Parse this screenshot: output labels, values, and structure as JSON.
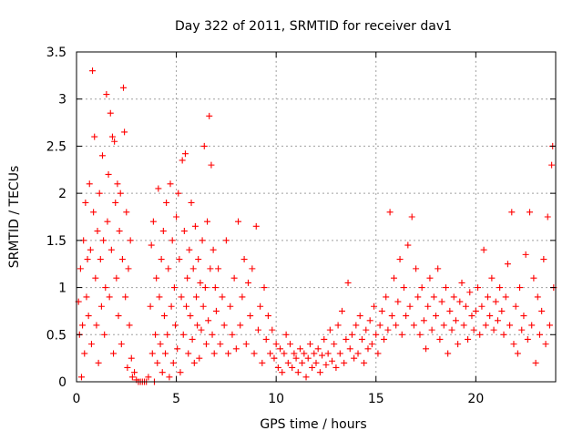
{
  "chart_data": {
    "type": "scatter",
    "title": "Day 322 of 2011, SRMTID for receiver dav1",
    "xlabel": "GPS time / hours",
    "ylabel": "SRMTID / TECUs",
    "xlim": [
      0,
      24
    ],
    "ylim": [
      0,
      3.5
    ],
    "x_ticks": [
      0,
      5,
      10,
      15,
      20
    ],
    "x_tick_labels": [
      "0",
      "5",
      "10",
      "15",
      "20"
    ],
    "y_ticks": [
      0,
      0.5,
      1,
      1.5,
      2,
      2.5,
      3,
      3.5
    ],
    "y_tick_labels": [
      "0",
      "0.5",
      "1",
      "1.5",
      "2",
      "2.5",
      "3",
      "3.5"
    ],
    "grid": true,
    "marker": "plus",
    "series": [
      {
        "name": "dav1",
        "color": "#ff0000",
        "points": [
          [
            0.1,
            0.85
          ],
          [
            0.15,
            0.5
          ],
          [
            0.2,
            1.2
          ],
          [
            0.25,
            0.05
          ],
          [
            0.3,
            0.6
          ],
          [
            0.35,
            1.5
          ],
          [
            0.4,
            0.3
          ],
          [
            0.45,
            1.9
          ],
          [
            0.5,
            0.9
          ],
          [
            0.55,
            1.3
          ],
          [
            0.6,
            0.7
          ],
          [
            0.65,
            2.1
          ],
          [
            0.7,
            1.4
          ],
          [
            0.75,
            0.4
          ],
          [
            0.8,
            3.3
          ],
          [
            0.85,
            1.8
          ],
          [
            0.9,
            2.6
          ],
          [
            0.95,
            1.1
          ],
          [
            1.0,
            0.6
          ],
          [
            1.05,
            1.6
          ],
          [
            1.1,
            0.2
          ],
          [
            1.15,
            2.0
          ],
          [
            1.2,
            1.3
          ],
          [
            1.25,
            0.8
          ],
          [
            1.3,
            2.4
          ],
          [
            1.35,
            1.5
          ],
          [
            1.4,
            0.5
          ],
          [
            1.45,
            1.0
          ],
          [
            1.5,
            3.05
          ],
          [
            1.55,
            1.7
          ],
          [
            1.6,
            2.2
          ],
          [
            1.65,
            0.9
          ],
          [
            1.7,
            2.85
          ],
          [
            1.75,
            1.4
          ],
          [
            1.8,
            2.6
          ],
          [
            1.85,
            0.3
          ],
          [
            1.9,
            2.55
          ],
          [
            1.95,
            1.9
          ],
          [
            2.0,
            1.1
          ],
          [
            2.05,
            2.1
          ],
          [
            2.1,
            0.7
          ],
          [
            2.15,
            1.6
          ],
          [
            2.2,
            2.0
          ],
          [
            2.25,
            0.4
          ],
          [
            2.3,
            1.3
          ],
          [
            2.35,
            3.12
          ],
          [
            2.4,
            2.65
          ],
          [
            2.45,
            0.9
          ],
          [
            2.5,
            1.8
          ],
          [
            2.55,
            0.15
          ],
          [
            2.6,
            1.2
          ],
          [
            2.65,
            0.6
          ],
          [
            2.7,
            1.5
          ],
          [
            2.75,
            0.25
          ],
          [
            2.8,
            0.05
          ],
          [
            2.9,
            0.1
          ],
          [
            3.0,
            0.02
          ],
          [
            3.1,
            0.0
          ],
          [
            3.2,
            0.0
          ],
          [
            3.3,
            0.0
          ],
          [
            3.4,
            0.0
          ],
          [
            3.5,
            0.0
          ],
          [
            3.6,
            0.05
          ],
          [
            3.7,
            0.8
          ],
          [
            3.75,
            1.45
          ],
          [
            3.8,
            0.3
          ],
          [
            3.85,
            1.7
          ],
          [
            3.9,
            0.0
          ],
          [
            3.95,
            0.5
          ],
          [
            4.0,
            1.1
          ],
          [
            4.05,
            0.2
          ],
          [
            4.1,
            2.05
          ],
          [
            4.15,
            0.9
          ],
          [
            4.2,
            0.4
          ],
          [
            4.25,
            1.3
          ],
          [
            4.3,
            0.1
          ],
          [
            4.35,
            1.6
          ],
          [
            4.4,
            0.7
          ],
          [
            4.45,
            0.3
          ],
          [
            4.5,
            1.9
          ],
          [
            4.55,
            0.5
          ],
          [
            4.6,
            1.2
          ],
          [
            4.65,
            0.05
          ],
          [
            4.7,
            2.1
          ],
          [
            4.75,
            0.8
          ],
          [
            4.8,
            1.5
          ],
          [
            4.85,
            0.2
          ],
          [
            4.9,
            1.0
          ],
          [
            4.95,
            0.6
          ],
          [
            5.0,
            1.75
          ],
          [
            5.05,
            0.35
          ],
          [
            5.1,
            2.0
          ],
          [
            5.15,
            1.3
          ],
          [
            5.2,
            0.1
          ],
          [
            5.25,
            0.9
          ],
          [
            5.3,
            2.35
          ],
          [
            5.35,
            0.5
          ],
          [
            5.4,
            1.6
          ],
          [
            5.45,
            2.42
          ],
          [
            5.5,
            0.8
          ],
          [
            5.55,
            1.1
          ],
          [
            5.6,
            0.3
          ],
          [
            5.65,
            1.4
          ],
          [
            5.7,
            0.7
          ],
          [
            5.75,
            1.9
          ],
          [
            5.8,
            0.45
          ],
          [
            5.85,
            1.2
          ],
          [
            5.9,
            0.2
          ],
          [
            5.95,
            1.65
          ],
          [
            6.0,
            0.9
          ],
          [
            6.05,
            0.6
          ],
          [
            6.1,
            1.3
          ],
          [
            6.15,
            0.25
          ],
          [
            6.2,
            1.05
          ],
          [
            6.25,
            0.55
          ],
          [
            6.3,
            1.5
          ],
          [
            6.35,
            0.8
          ],
          [
            6.4,
            2.5
          ],
          [
            6.45,
            1.0
          ],
          [
            6.5,
            0.4
          ],
          [
            6.55,
            1.7
          ],
          [
            6.6,
            0.65
          ],
          [
            6.65,
            2.82
          ],
          [
            6.7,
            1.2
          ],
          [
            6.75,
            2.3
          ],
          [
            6.8,
            0.5
          ],
          [
            6.85,
            1.4
          ],
          [
            6.9,
            0.3
          ],
          [
            6.95,
            1.0
          ],
          [
            7.0,
            0.75
          ],
          [
            7.1,
            1.2
          ],
          [
            7.2,
            0.4
          ],
          [
            7.3,
            0.9
          ],
          [
            7.4,
            0.6
          ],
          [
            7.5,
            1.5
          ],
          [
            7.6,
            0.3
          ],
          [
            7.7,
            0.8
          ],
          [
            7.8,
            0.5
          ],
          [
            7.9,
            1.1
          ],
          [
            8.0,
            0.35
          ],
          [
            8.1,
            1.7
          ],
          [
            8.2,
            0.6
          ],
          [
            8.3,
            0.9
          ],
          [
            8.4,
            1.3
          ],
          [
            8.5,
            0.4
          ],
          [
            8.6,
            1.05
          ],
          [
            8.7,
            0.7
          ],
          [
            8.8,
            1.2
          ],
          [
            8.9,
            0.3
          ],
          [
            9.0,
            1.65
          ],
          [
            9.1,
            0.55
          ],
          [
            9.2,
            0.8
          ],
          [
            9.3,
            0.2
          ],
          [
            9.4,
            1.0
          ],
          [
            9.5,
            0.45
          ],
          [
            9.6,
            0.7
          ],
          [
            9.7,
            0.3
          ],
          [
            9.8,
            0.55
          ],
          [
            9.9,
            0.25
          ],
          [
            10.0,
            0.4
          ],
          [
            10.1,
            0.15
          ],
          [
            10.2,
            0.35
          ],
          [
            10.3,
            0.1
          ],
          [
            10.4,
            0.3
          ],
          [
            10.5,
            0.5
          ],
          [
            10.6,
            0.2
          ],
          [
            10.7,
            0.4
          ],
          [
            10.8,
            0.15
          ],
          [
            10.9,
            0.3
          ],
          [
            11.0,
            0.25
          ],
          [
            11.1,
            0.1
          ],
          [
            11.2,
            0.35
          ],
          [
            11.3,
            0.2
          ],
          [
            11.4,
            0.3
          ],
          [
            11.5,
            0.05
          ],
          [
            11.6,
            0.25
          ],
          [
            11.7,
            0.4
          ],
          [
            11.8,
            0.15
          ],
          [
            11.9,
            0.3
          ],
          [
            12.0,
            0.2
          ],
          [
            12.1,
            0.35
          ],
          [
            12.2,
            0.1
          ],
          [
            12.3,
            0.28
          ],
          [
            12.4,
            0.45
          ],
          [
            12.5,
            0.18
          ],
          [
            12.6,
            0.3
          ],
          [
            12.7,
            0.55
          ],
          [
            12.8,
            0.22
          ],
          [
            12.9,
            0.4
          ],
          [
            13.0,
            0.15
          ],
          [
            13.1,
            0.6
          ],
          [
            13.2,
            0.3
          ],
          [
            13.3,
            0.75
          ],
          [
            13.4,
            0.2
          ],
          [
            13.5,
            0.45
          ],
          [
            13.6,
            1.05
          ],
          [
            13.7,
            0.35
          ],
          [
            13.8,
            0.5
          ],
          [
            13.9,
            0.25
          ],
          [
            14.0,
            0.6
          ],
          [
            14.1,
            0.3
          ],
          [
            14.2,
            0.7
          ],
          [
            14.3,
            0.45
          ],
          [
            14.4,
            0.2
          ],
          [
            14.5,
            0.55
          ],
          [
            14.6,
            0.35
          ],
          [
            14.7,
            0.65
          ],
          [
            14.8,
            0.4
          ],
          [
            14.9,
            0.8
          ],
          [
            15.0,
            0.5
          ],
          [
            15.1,
            0.3
          ],
          [
            15.2,
            0.6
          ],
          [
            15.3,
            0.75
          ],
          [
            15.4,
            0.45
          ],
          [
            15.5,
            0.9
          ],
          [
            15.6,
            0.55
          ],
          [
            15.7,
            1.8
          ],
          [
            15.8,
            0.7
          ],
          [
            15.9,
            1.1
          ],
          [
            16.0,
            0.6
          ],
          [
            16.1,
            0.85
          ],
          [
            16.2,
            1.3
          ],
          [
            16.3,
            0.5
          ],
          [
            16.4,
            1.0
          ],
          [
            16.5,
            0.7
          ],
          [
            16.6,
            1.45
          ],
          [
            16.7,
            0.8
          ],
          [
            16.8,
            1.75
          ],
          [
            16.9,
            0.6
          ],
          [
            17.0,
            1.2
          ],
          [
            17.1,
            0.9
          ],
          [
            17.2,
            0.5
          ],
          [
            17.3,
            1.0
          ],
          [
            17.4,
            0.65
          ],
          [
            17.5,
            0.35
          ],
          [
            17.6,
            0.8
          ],
          [
            17.7,
            1.1
          ],
          [
            17.8,
            0.55
          ],
          [
            17.9,
            0.9
          ],
          [
            18.0,
            0.7
          ],
          [
            18.1,
            1.2
          ],
          [
            18.2,
            0.45
          ],
          [
            18.3,
            0.85
          ],
          [
            18.4,
            0.6
          ],
          [
            18.5,
            1.0
          ],
          [
            18.6,
            0.3
          ],
          [
            18.7,
            0.75
          ],
          [
            18.8,
            0.55
          ],
          [
            18.9,
            0.9
          ],
          [
            19.0,
            0.65
          ],
          [
            19.1,
            0.4
          ],
          [
            19.2,
            0.85
          ],
          [
            19.3,
            1.05
          ],
          [
            19.4,
            0.6
          ],
          [
            19.5,
            0.8
          ],
          [
            19.6,
            0.45
          ],
          [
            19.7,
            0.95
          ],
          [
            19.8,
            0.7
          ],
          [
            19.9,
            0.55
          ],
          [
            20.0,
            0.75
          ],
          [
            20.1,
            1.0
          ],
          [
            20.2,
            0.5
          ],
          [
            20.3,
            0.8
          ],
          [
            20.4,
            1.4
          ],
          [
            20.5,
            0.6
          ],
          [
            20.6,
            0.9
          ],
          [
            20.7,
            0.7
          ],
          [
            20.8,
            1.1
          ],
          [
            20.9,
            0.55
          ],
          [
            21.0,
            0.85
          ],
          [
            21.1,
            0.65
          ],
          [
            21.2,
            1.0
          ],
          [
            21.3,
            0.75
          ],
          [
            21.4,
            0.5
          ],
          [
            21.5,
            0.9
          ],
          [
            21.6,
            1.25
          ],
          [
            21.7,
            0.6
          ],
          [
            21.8,
            1.8
          ],
          [
            21.9,
            0.4
          ],
          [
            22.0,
            0.8
          ],
          [
            22.1,
            0.3
          ],
          [
            22.2,
            1.0
          ],
          [
            22.3,
            0.55
          ],
          [
            22.4,
            0.7
          ],
          [
            22.5,
            1.35
          ],
          [
            22.6,
            0.45
          ],
          [
            22.7,
            1.8
          ],
          [
            22.8,
            0.6
          ],
          [
            22.9,
            1.1
          ],
          [
            23.0,
            0.2
          ],
          [
            23.1,
            0.9
          ],
          [
            23.2,
            0.5
          ],
          [
            23.3,
            0.75
          ],
          [
            23.4,
            1.3
          ],
          [
            23.5,
            0.4
          ],
          [
            23.6,
            1.75
          ],
          [
            23.7,
            0.6
          ],
          [
            23.8,
            2.3
          ],
          [
            23.85,
            2.5
          ],
          [
            23.9,
            1.0
          ]
        ]
      }
    ]
  }
}
